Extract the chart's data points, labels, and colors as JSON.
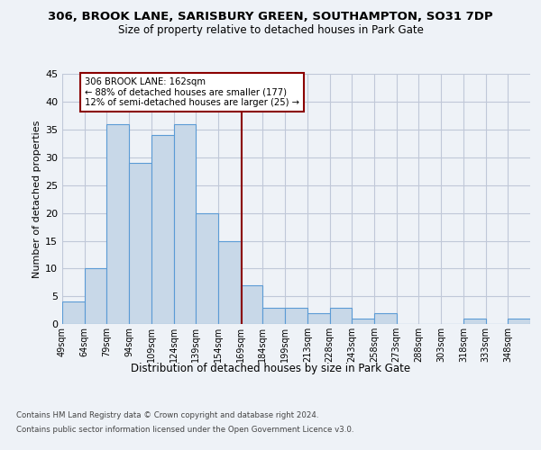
{
  "title1": "306, BROOK LANE, SARISBURY GREEN, SOUTHAMPTON, SO31 7DP",
  "title2": "Size of property relative to detached houses in Park Gate",
  "xlabel": "Distribution of detached houses by size in Park Gate",
  "ylabel": "Number of detached properties",
  "categories": [
    "49sqm",
    "64sqm",
    "79sqm",
    "94sqm",
    "109sqm",
    "124sqm",
    "139sqm",
    "154sqm",
    "169sqm",
    "184sqm",
    "199sqm",
    "213sqm",
    "228sqm",
    "243sqm",
    "258sqm",
    "273sqm",
    "288sqm",
    "303sqm",
    "318sqm",
    "333sqm",
    "348sqm"
  ],
  "values": [
    4,
    10,
    36,
    29,
    34,
    36,
    20,
    15,
    7,
    3,
    3,
    2,
    3,
    1,
    2,
    0,
    0,
    0,
    1,
    0,
    1
  ],
  "bar_color": "#c8d8e8",
  "bar_edge_color": "#5b9bd5",
  "vline_color": "#8b0000",
  "annotation_line1": "306 BROOK LANE: 162sqm",
  "annotation_line2": "← 88% of detached houses are smaller (177)",
  "annotation_line3": "12% of semi-detached houses are larger (25) →",
  "annotation_box_color": "#ffffff",
  "annotation_edge_color": "#8b0000",
  "ylim": [
    0,
    45
  ],
  "yticks": [
    0,
    5,
    10,
    15,
    20,
    25,
    30,
    35,
    40,
    45
  ],
  "footnote1": "Contains HM Land Registry data © Crown copyright and database right 2024.",
  "footnote2": "Contains public sector information licensed under the Open Government Licence v3.0.",
  "bg_color": "#eef2f7",
  "plot_bg_color": "#eef2f7",
  "grid_color": "#c0c8d8",
  "bin_width": 15
}
